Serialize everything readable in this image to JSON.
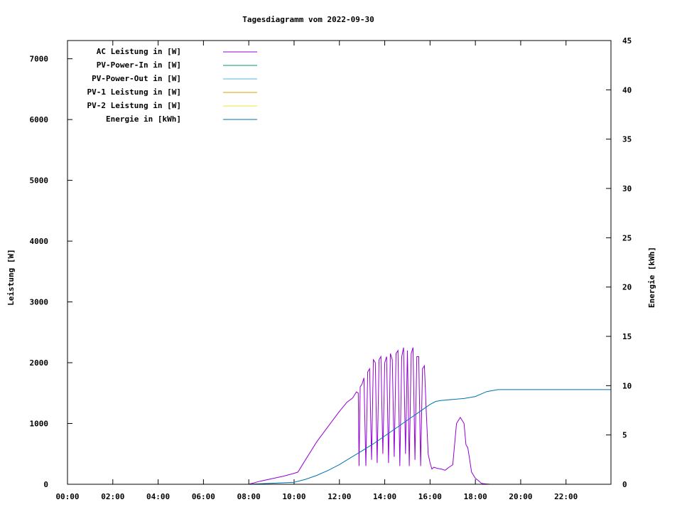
{
  "chart_data": {
    "type": "line",
    "title": "Tagesdiagramm vom 2022-09-30",
    "ylabel": "Leistung [W]",
    "y2label": "Energie [kWh]",
    "ylim": [
      0,
      7300
    ],
    "y2lim": [
      0,
      45
    ],
    "xlim": [
      "00:00",
      "23:59"
    ],
    "x_ticks": [
      "00:00",
      "02:00",
      "04:00",
      "06:00",
      "08:00",
      "10:00",
      "12:00",
      "14:00",
      "16:00",
      "18:00",
      "20:00",
      "22:00"
    ],
    "y_ticks": [
      0,
      1000,
      2000,
      3000,
      4000,
      5000,
      6000,
      7000
    ],
    "y2_ticks": [
      0,
      5,
      10,
      15,
      20,
      25,
      30,
      35,
      40,
      45
    ],
    "legend_position": "top-left",
    "series": [
      {
        "name": "AC Leistung in [W]",
        "color": "#9400d3",
        "axis": "y",
        "x": [
          "08:00",
          "08:30",
          "09:00",
          "09:30",
          "10:00",
          "10:10",
          "10:30",
          "11:00",
          "11:30",
          "12:00",
          "12:20",
          "12:35",
          "12:45",
          "12:50",
          "12:52",
          "12:55",
          "13:00",
          "13:05",
          "13:10",
          "13:15",
          "13:20",
          "13:25",
          "13:30",
          "13:35",
          "13:40",
          "13:45",
          "13:50",
          "13:55",
          "14:00",
          "14:05",
          "14:10",
          "14:15",
          "14:20",
          "14:25",
          "14:30",
          "14:35",
          "14:40",
          "14:45",
          "14:50",
          "14:55",
          "15:00",
          "15:05",
          "15:10",
          "15:15",
          "15:20",
          "15:25",
          "15:30",
          "15:35",
          "15:40",
          "15:45",
          "15:50",
          "15:55",
          "16:00",
          "16:05",
          "16:10",
          "16:20",
          "16:30",
          "16:40",
          "16:50",
          "17:00",
          "17:10",
          "17:20",
          "17:30",
          "17:35",
          "17:40",
          "17:45",
          "17:50",
          "18:00",
          "18:10",
          "18:15",
          "18:20",
          "18:30",
          "18:40",
          "18:50",
          "19:00",
          "19:10",
          "19:20"
        ],
        "values": [
          0,
          50,
          90,
          130,
          180,
          200,
          400,
          700,
          950,
          1200,
          1350,
          1420,
          1520,
          1500,
          300,
          1600,
          1650,
          1750,
          300,
          1850,
          1900,
          400,
          2050,
          2000,
          350,
          2050,
          2100,
          500,
          2000,
          2100,
          350,
          2150,
          2050,
          450,
          2150,
          2200,
          300,
          2100,
          2250,
          500,
          2200,
          300,
          2150,
          2250,
          400,
          2100,
          2100,
          300,
          1900,
          1950,
          1200,
          500,
          350,
          250,
          280,
          260,
          250,
          230,
          280,
          320,
          1000,
          1100,
          1000,
          650,
          600,
          400,
          200,
          100,
          50,
          20,
          10,
          5,
          0,
          0,
          0,
          0,
          0
        ]
      },
      {
        "name": "PV-Power-In in [W]",
        "color": "#009e73",
        "axis": "y",
        "x": [],
        "values": []
      },
      {
        "name": "PV-Power-Out in [W]",
        "color": "#56b4e9",
        "axis": "y",
        "x": [],
        "values": []
      },
      {
        "name": "PV-1 Leistung in [W]",
        "color": "#e69f00",
        "axis": "y",
        "x": [],
        "values": []
      },
      {
        "name": "PV-2 Leistung in [W]",
        "color": "#f0e442",
        "axis": "y",
        "x": [],
        "values": []
      },
      {
        "name": "Energie in [kWh]",
        "color": "#0072b2",
        "axis": "y2",
        "x": [
          "00:00",
          "08:00",
          "09:00",
          "10:00",
          "10:30",
          "11:00",
          "11:30",
          "12:00",
          "12:30",
          "13:00",
          "13:30",
          "14:00",
          "14:30",
          "15:00",
          "15:30",
          "16:00",
          "16:15",
          "16:30",
          "17:00",
          "17:30",
          "18:00",
          "18:30",
          "19:00",
          "20:00",
          "23:59"
        ],
        "values": [
          0,
          0,
          0.1,
          0.2,
          0.5,
          0.9,
          1.4,
          2.0,
          2.7,
          3.4,
          4.1,
          4.9,
          5.7,
          6.5,
          7.3,
          8.1,
          8.4,
          8.5,
          8.6,
          8.7,
          8.9,
          9.4,
          9.6,
          9.6,
          9.6
        ]
      }
    ]
  }
}
